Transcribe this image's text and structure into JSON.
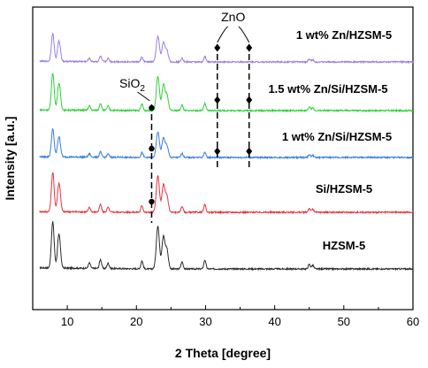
{
  "chart_data": {
    "type": "line",
    "xlabel": "2 Theta [degree]",
    "ylabel": "Intensity [a.u.]",
    "xlim": [
      5,
      60
    ],
    "x_ticks": [
      "10",
      "20",
      "30",
      "40",
      "50",
      "60"
    ],
    "y_ticks_shown": false,
    "series": [
      {
        "name": "HZSM-5",
        "color": "#2b2b2b",
        "peak_positions": [
          7.9,
          8.8,
          13.2,
          14.8,
          15.9,
          20.8,
          23.1,
          23.9,
          24.4,
          26.6,
          29.9,
          45.0,
          45.5
        ]
      },
      {
        "name": "Si/HZSM-5",
        "color": "#e8343c",
        "peak_positions": [
          7.9,
          8.8,
          13.2,
          14.8,
          15.9,
          20.8,
          23.1,
          23.9,
          24.4,
          26.6,
          29.9,
          45.0,
          45.5
        ]
      },
      {
        "name": "1 wt% Zn/Si/HZSM-5",
        "color": "#3a7fd5",
        "peak_positions": [
          7.9,
          8.8,
          13.2,
          14.8,
          15.9,
          20.8,
          23.1,
          23.9,
          24.4,
          26.6,
          29.9,
          45.0,
          45.5
        ]
      },
      {
        "name": "1.5 wt% Zn/Si/HZSM-5",
        "color": "#2ed13a",
        "peak_positions": [
          7.9,
          8.8,
          13.2,
          14.8,
          15.9,
          20.8,
          23.1,
          23.9,
          24.4,
          26.6,
          29.9,
          45.0,
          45.5
        ]
      },
      {
        "name": "1 wt% Zn/HZSM-5",
        "color": "#9b7fe0",
        "peak_positions": [
          7.9,
          8.8,
          13.2,
          14.8,
          15.9,
          20.8,
          23.1,
          23.9,
          24.4,
          26.6,
          29.9,
          45.0,
          45.5
        ]
      }
    ],
    "annotations": [
      {
        "label": "SiO2",
        "label_main": "SiO",
        "label_sub": "2",
        "x": 22.2,
        "marker_series": [
          "Si/HZSM-5",
          "1 wt% Zn/Si/HZSM-5",
          "1.5 wt% Zn/Si/HZSM-5"
        ]
      },
      {
        "label": "ZnO",
        "x": [
          31.7,
          36.3
        ],
        "marker_series": [
          "1 wt% Zn/Si/HZSM-5",
          "1.5 wt% Zn/Si/HZSM-5",
          "1 wt% Zn/HZSM-5"
        ]
      }
    ]
  }
}
